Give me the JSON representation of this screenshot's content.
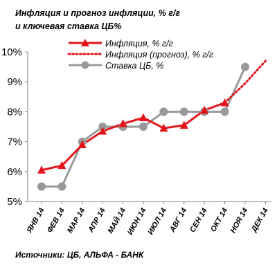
{
  "chart_data": {
    "type": "line",
    "title_line1": "Инфляция  и  прогноз инфляции, % г/г",
    "title_line2": "и ключевая ставка ЦБ%",
    "categories": [
      "ЯНВ 14",
      "ФЕВ 14",
      "МАР 14",
      "АПР 14",
      "МАЙ 14",
      "ИЮН 14",
      "ИЮЛ 14",
      "АВГ 14",
      "СЕН 14",
      "ОКТ 14",
      "НОЯ 14",
      "ДЕК 14"
    ],
    "yticks": [
      "5%",
      "6%",
      "7%",
      "8%",
      "9%",
      "10%"
    ],
    "ylim": [
      5,
      10
    ],
    "series": [
      {
        "name": "Инфляция, % г/г",
        "color": "#e3151b",
        "marker": "triangle",
        "style": "solid",
        "values": [
          6.05,
          6.2,
          6.9,
          7.35,
          7.6,
          7.8,
          7.45,
          7.55,
          8.05,
          8.3,
          null,
          null
        ]
      },
      {
        "name": "Инфляция (прогноз), % г/г",
        "color": "#e3151b",
        "marker": "none",
        "style": "dotted",
        "values": [
          null,
          null,
          null,
          null,
          null,
          null,
          null,
          null,
          null,
          8.3,
          8.95,
          9.7
        ]
      },
      {
        "name": "Ставка ЦБ, %",
        "color": "#999999",
        "marker": "circle",
        "style": "solid",
        "values": [
          5.5,
          5.5,
          7.0,
          7.5,
          7.5,
          7.5,
          8.0,
          8.0,
          8.0,
          8.0,
          9.5,
          null
        ]
      }
    ],
    "grid": false,
    "legend_position": "top-right"
  },
  "source": "Источники: ЦБ, АЛЬФА - БАНК"
}
